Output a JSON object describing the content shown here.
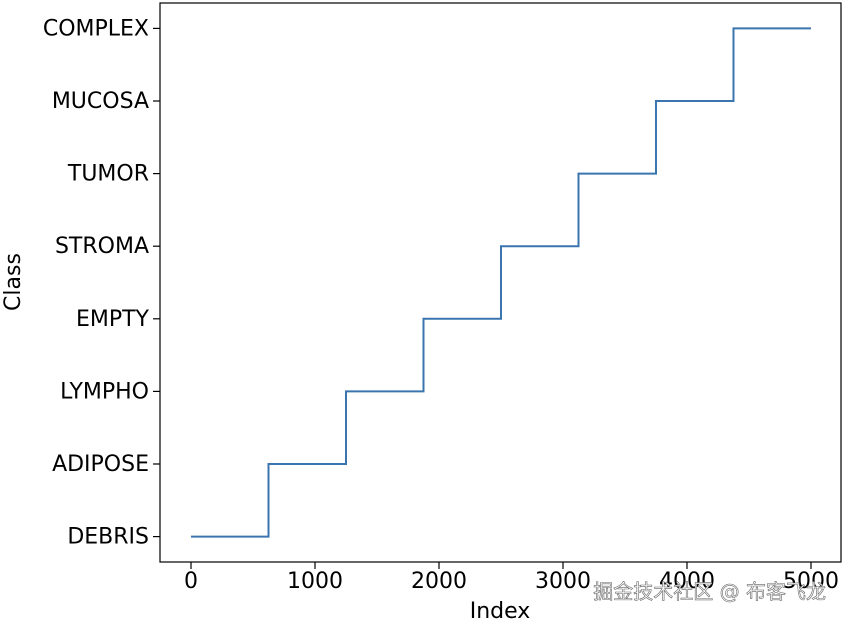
{
  "chart_data": {
    "type": "line",
    "x_label": "Index",
    "y_label": "Class",
    "x": [
      0,
      625,
      625,
      1250,
      1250,
      1875,
      1875,
      2500,
      2500,
      3125,
      3125,
      3750,
      3750,
      4375,
      4375,
      5000
    ],
    "series": [
      {
        "color": "#3b75af",
        "values": [
          0,
          0,
          1,
          1,
          2,
          2,
          3,
          3,
          4,
          4,
          5,
          5,
          6,
          6,
          7,
          7
        ]
      }
    ],
    "xlim": [
      -250,
      5242
    ],
    "xticks": [
      0,
      1000,
      2000,
      3000,
      4000,
      5000
    ],
    "ylim": [
      -0.35,
      7.35
    ],
    "yticks": [
      {
        "value": 0,
        "label": "DEBRIS"
      },
      {
        "value": 1,
        "label": "ADIPOSE"
      },
      {
        "value": 2,
        "label": "LYMPHO"
      },
      {
        "value": 3,
        "label": "EMPTY"
      },
      {
        "value": 4,
        "label": "STROMA"
      },
      {
        "value": 5,
        "label": "TUMOR"
      },
      {
        "value": 6,
        "label": "MUCOSA"
      },
      {
        "value": 7,
        "label": "COMPLEX"
      }
    ],
    "grid": false,
    "watermark": "掘金技术社区 @ 布客飞龙"
  }
}
